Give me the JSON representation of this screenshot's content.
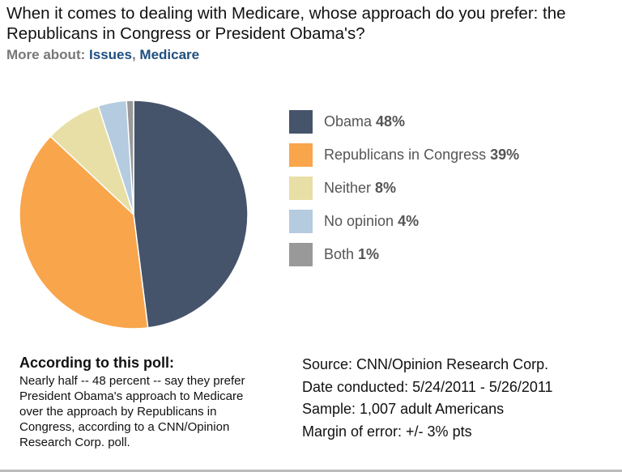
{
  "title": "When it comes to dealing with Medicare, whose approach do you prefer: the Republicans in Congress or President Obama's?",
  "more_about": {
    "label": "More about:",
    "links": [
      "Issues",
      ", ",
      "Medicare"
    ]
  },
  "chart_data": {
    "type": "pie",
    "start": "top",
    "direction": "clockwise",
    "legend_placement": "right",
    "slices": [
      {
        "name": "Obama",
        "value": 48,
        "label": "48%",
        "color": "#45546b"
      },
      {
        "name": "Republicans in Congress",
        "value": 39,
        "label": "39%",
        "color": "#f9a54b"
      },
      {
        "name": "Neither",
        "value": 8,
        "label": "8%",
        "color": "#e8dfa6"
      },
      {
        "name": "No opinion",
        "value": 4,
        "label": "4%",
        "color": "#b4cbe0"
      },
      {
        "name": "Both",
        "value": 1,
        "label": "1%",
        "color": "#999999"
      }
    ]
  },
  "poll": {
    "heading": "According to this poll:",
    "text": "Nearly half -- 48 percent -- say they prefer President Obama's approach to Medicare over the approach by Republicans in Congress, according to a CNN/Opinion Research Corp. poll."
  },
  "meta": [
    "Source: CNN/Opinion Research Corp.",
    "Date conducted: 5/24/2011 - 5/26/2011",
    "Sample: 1,007 adult Americans",
    "Margin of error: +/- 3% pts"
  ]
}
